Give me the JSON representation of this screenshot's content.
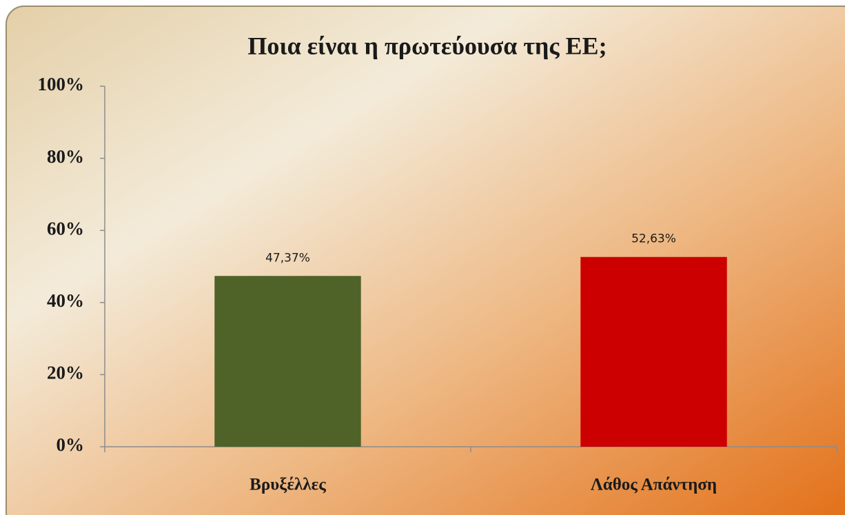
{
  "chart_data": {
    "type": "bar",
    "title": "Ποια είναι η πρωτεύουσα της ΕΕ;",
    "categories": [
      "Βρυξέλλες",
      "Λάθος Απάντηση"
    ],
    "values": [
      47.37,
      52.63
    ],
    "value_labels": [
      "47,37%",
      "52,63%"
    ],
    "colors": [
      "#4f6228",
      "#cc0000"
    ],
    "ylim": [
      0,
      100
    ],
    "yticks": [
      {
        "value": 0,
        "label": "0%"
      },
      {
        "value": 20,
        "label": "20%"
      },
      {
        "value": 40,
        "label": "40%"
      },
      {
        "value": 60,
        "label": "60%"
      },
      {
        "value": 80,
        "label": "80%"
      },
      {
        "value": 100,
        "label": "100%"
      }
    ],
    "grid": false
  }
}
